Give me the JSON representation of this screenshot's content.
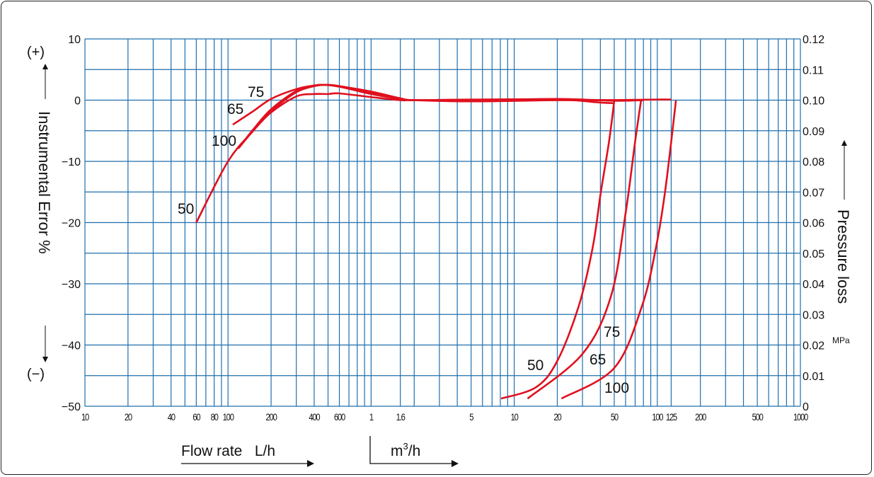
{
  "chart_data": {
    "type": "line",
    "x_scale": "log",
    "x_unit_note": "x values in L/h",
    "xlim": [
      10,
      1000000
    ],
    "xlabel_left": "Flow rate   L/h",
    "xlabel_right_base": "m",
    "xlabel_right_sup": "3",
    "xlabel_right_tail": "/h",
    "x_ticks": [
      {
        "value": 10,
        "label": "10"
      },
      {
        "value": 20,
        "label": "20"
      },
      {
        "value": 40,
        "label": "40"
      },
      {
        "value": 60,
        "label": "60"
      },
      {
        "value": 80,
        "label": "80"
      },
      {
        "value": 100,
        "label": "100"
      },
      {
        "value": 200,
        "label": "200"
      },
      {
        "value": 400,
        "label": "400"
      },
      {
        "value": 600,
        "label": "600"
      },
      {
        "value": 1000,
        "label": "1"
      },
      {
        "value": 1600,
        "label": "1.6"
      },
      {
        "value": 5000,
        "label": "5"
      },
      {
        "value": 10000,
        "label": "10"
      },
      {
        "value": 20000,
        "label": "20"
      },
      {
        "value": 50000,
        "label": "50"
      },
      {
        "value": 100000,
        "label": "100"
      },
      {
        "value": 125000,
        "label": "125"
      },
      {
        "value": 200000,
        "label": "200"
      },
      {
        "value": 500000,
        "label": "500"
      },
      {
        "value": 1000000,
        "label": "1000"
      }
    ],
    "y_left": {
      "label": "Instrumental Error %",
      "plus": "(+)",
      "minus": "(−)",
      "ylim": [
        -50,
        10
      ],
      "ticks": [
        {
          "value": 10,
          "label": "10"
        },
        {
          "value": 0,
          "label": "0"
        },
        {
          "value": -10,
          "label": "−10"
        },
        {
          "value": -20,
          "label": "−20"
        },
        {
          "value": -30,
          "label": "−30"
        },
        {
          "value": -40,
          "label": "−40"
        },
        {
          "value": -50,
          "label": "−50"
        }
      ]
    },
    "y_right": {
      "label": "Pressure loss",
      "unit": "MPa",
      "ylim": [
        0,
        0.12
      ],
      "ticks": [
        "0.12",
        "0.11",
        "0.10",
        "0.09",
        "0.08",
        "0.07",
        "0.06",
        "0.05",
        "0.04",
        "0.03",
        "0.02",
        "0.01",
        "0"
      ]
    },
    "grid": true,
    "colors": {
      "grid": "#1f6fae",
      "curve": "#e0101e",
      "text": "#111111"
    },
    "error_series": [
      {
        "name": "50",
        "x": [
          60,
          100,
          150,
          200,
          300,
          400,
          450,
          600,
          1000,
          1600,
          2000,
          5000,
          20000,
          40000,
          50000
        ],
        "y": [
          -20,
          -10,
          -5,
          -1.8,
          1.3,
          2.3,
          2.5,
          2.2,
          1.0,
          0.2,
          0,
          0.1,
          0.1,
          -0.4,
          -0.5
        ]
      },
      {
        "name": "65",
        "x": [
          108,
          150,
          200,
          300,
          400,
          500,
          600,
          1000,
          1600,
          2000,
          5000,
          20000,
          50000,
          80000
        ],
        "y": [
          -4,
          -1.8,
          0.2,
          1.8,
          2.4,
          2.5,
          2.3,
          1.4,
          0.3,
          0,
          0,
          0.2,
          -0.1,
          0
        ]
      },
      {
        "name": "75",
        "x": [
          118,
          150,
          200,
          300,
          400,
          500,
          600,
          1000,
          1600,
          2000,
          5000,
          20000,
          50000,
          80000
        ],
        "y": [
          -7.9,
          -4.8,
          -1.5,
          1.5,
          2.3,
          2.5,
          2.2,
          1.2,
          0.2,
          0,
          -0.2,
          0,
          0,
          0
        ]
      },
      {
        "name": "100",
        "x": [
          118,
          150,
          200,
          300,
          400,
          500,
          600,
          1000,
          1600,
          2000,
          5000,
          20000,
          50000,
          100000,
          125000
        ],
        "y": [
          -7.9,
          -5,
          -2,
          0.6,
          1.0,
          1.0,
          1.1,
          0.5,
          0,
          0,
          0,
          0,
          0,
          0.1,
          0.1
        ]
      }
    ],
    "pressure_series": [
      {
        "name": "50",
        "x": [
          8100,
          14200,
          20000,
          28200,
          35400,
          40200,
          46000,
          50000
        ],
        "y": [
          0.0025,
          0.0062,
          0.0148,
          0.0326,
          0.052,
          0.0696,
          0.0865,
          0.0997
        ]
      },
      {
        "name": "65",
        "x": [
          12400,
          30000,
          47500,
          60000,
          70000,
          77000
        ],
        "y": [
          0.0025,
          0.0171,
          0.036,
          0.063,
          0.0865,
          0.0999
        ]
      },
      {
        "name": "100",
        "x": [
          21400,
          50000,
          78000,
          98000,
          114000,
          135000
        ],
        "y": [
          0.0025,
          0.0125,
          0.0326,
          0.052,
          0.071,
          0.0999
        ]
      }
    ],
    "curve_labels": {
      "error": [
        "75",
        "65",
        "100",
        "50"
      ],
      "pressure": [
        "50",
        "75",
        "65",
        "100"
      ]
    }
  }
}
